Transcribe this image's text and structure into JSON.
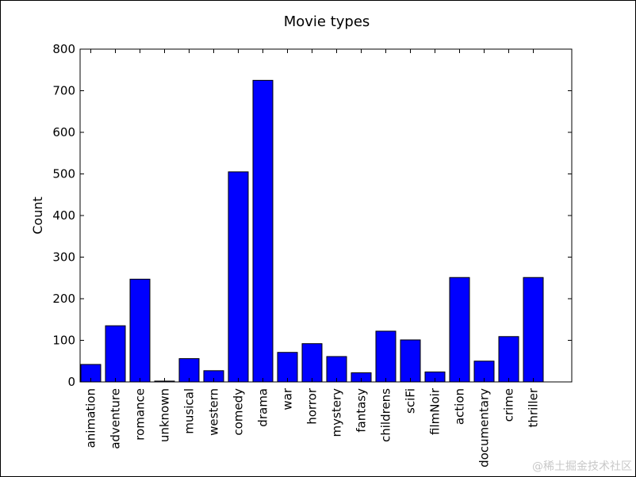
{
  "chart_data": {
    "type": "bar",
    "title": "Movie types",
    "xlabel": "",
    "ylabel": "Count",
    "ylim": [
      0,
      800
    ],
    "yticks": [
      0,
      100,
      200,
      300,
      400,
      500,
      600,
      700,
      800
    ],
    "categories": [
      "animation",
      "adventure",
      "romance",
      "unknown",
      "musical",
      "western",
      "comedy",
      "drama",
      "war",
      "horror",
      "mystery",
      "fantasy",
      "childrens",
      "sciFi",
      "filmNoir",
      "action",
      "documentary",
      "crime",
      "thriller"
    ],
    "values": [
      42,
      135,
      247,
      2,
      56,
      27,
      505,
      725,
      71,
      92,
      61,
      22,
      122,
      101,
      24,
      251,
      50,
      109,
      251
    ],
    "bar_color": "#0000ff",
    "grid": false,
    "legend": "none"
  },
  "watermark": "@稀土掘金技术社区"
}
